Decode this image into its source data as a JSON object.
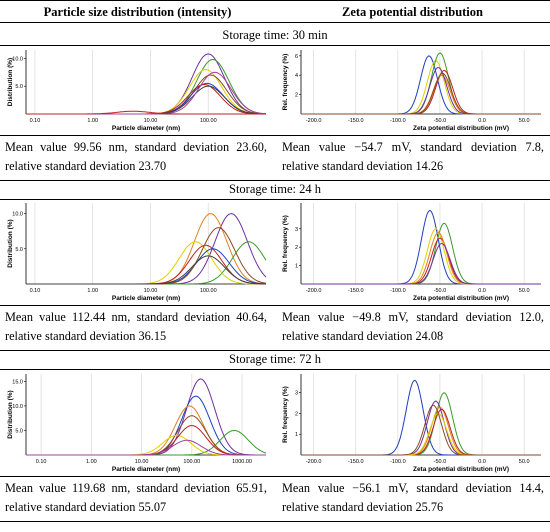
{
  "header": [
    "Particle size distribution (intensity)",
    "Zeta potential distribution"
  ],
  "sections": [
    {
      "title": "Storage time: 30 min",
      "size_chart": {
        "type": "line",
        "xlabel": "Particle diameter (nm)",
        "ylabel": "Distribution (%)",
        "log_x": true,
        "xlim": [
          0.07,
          1000
        ],
        "xticks": [
          {
            "value": 0.1,
            "label": "0.10"
          },
          {
            "value": 1,
            "label": "1.00"
          },
          {
            "value": 10,
            "label": "10.00"
          },
          {
            "value": 100,
            "label": "100.00"
          }
        ],
        "ylim": [
          0,
          11.5
        ],
        "yticks": [
          {
            "value": 5,
            "label": "5.0"
          },
          {
            "value": 10,
            "label": "10.0"
          }
        ],
        "series": [
          {
            "color": "#7030a0",
            "peak": 100,
            "height": 10.8
          },
          {
            "color": "#3a9a2a",
            "peak": 120,
            "height": 9.8
          },
          {
            "color": "#e0d000",
            "peak": 90,
            "height": 8
          },
          {
            "color": "#8a4a20",
            "peak": 110,
            "height": 7
          },
          {
            "color": "#1f3fbf",
            "peak": 95,
            "height": 5.5
          },
          {
            "color": "#c02020",
            "peak": 85,
            "height": 5.3
          },
          {
            "color": "#404040",
            "peak": 100,
            "height": 5
          },
          {
            "color": "#a040a0",
            "peak": 130,
            "height": 7.5
          },
          {
            "color": "#c02020",
            "peak": 5,
            "height": 0.5
          }
        ]
      },
      "zeta_chart": {
        "type": "line",
        "xlabel": "Zeta potential distribution (mV)",
        "ylabel": "Rel. frequency (%)",
        "log_x": false,
        "xlim": [
          -215,
          70
        ],
        "xticks": [
          {
            "value": -200,
            "label": "-200.0"
          },
          {
            "value": -150,
            "label": "-150.0"
          },
          {
            "value": -100,
            "label": "-100.0"
          },
          {
            "value": -50,
            "label": "-50.0"
          },
          {
            "value": 0,
            "label": "0.0"
          },
          {
            "value": 50,
            "label": "50.0"
          }
        ],
        "ylim": [
          0,
          6.6
        ],
        "yticks": [
          2,
          4,
          6
        ],
        "series": [
          {
            "color": "#1f3fbf",
            "peak": -63,
            "height": 6
          },
          {
            "color": "#e0d000",
            "peak": -55,
            "height": 5.5
          },
          {
            "color": "#3a9a2a",
            "peak": -50,
            "height": 6.3
          },
          {
            "color": "#c02020",
            "peak": -45,
            "height": 4.5
          },
          {
            "color": "#e08020",
            "peak": -48,
            "height": 4
          },
          {
            "color": "#7030a0",
            "peak": -52,
            "height": 4.8
          },
          {
            "color": "#8a4a20",
            "peak": -47,
            "height": 4.2
          }
        ]
      },
      "size_text": "Mean value 99.56 nm, standard deviation 23.60, relative standard deviation 23.70",
      "zeta_text": "Mean value −54.7 mV, standard deviation 7.8, relative standard deviation 14.26"
    },
    {
      "title": "Storage time: 24 h",
      "size_chart": {
        "type": "line",
        "xlabel": "Particle diameter (nm)",
        "ylabel": "Distribution (%)",
        "log_x": true,
        "xlim": [
          0.07,
          1000
        ],
        "xticks": [
          {
            "value": 0.1,
            "label": "0.10"
          },
          {
            "value": 1,
            "label": "1.00"
          },
          {
            "value": 10,
            "label": "10.00"
          },
          {
            "value": 100,
            "label": "100.00"
          }
        ],
        "ylim": [
          0,
          11.5
        ],
        "yticks": [
          {
            "value": 5,
            "label": "5.0"
          },
          {
            "value": 10,
            "label": "10.0"
          }
        ],
        "series": [
          {
            "color": "#7030a0",
            "peak": 250,
            "height": 10
          },
          {
            "color": "#e08020",
            "peak": 110,
            "height": 10
          },
          {
            "color": "#3a9a2a",
            "peak": 500,
            "height": 6
          },
          {
            "color": "#e0d000",
            "peak": 60,
            "height": 6
          },
          {
            "color": "#c02020",
            "peak": 90,
            "height": 5.5
          },
          {
            "color": "#1f3fbf",
            "peak": 120,
            "height": 5
          },
          {
            "color": "#8a4a20",
            "peak": 150,
            "height": 8
          },
          {
            "color": "#404040",
            "peak": 100,
            "height": 4
          }
        ]
      },
      "zeta_chart": {
        "type": "line",
        "xlabel": "Zeta potential distribution (mV)",
        "ylabel": "Rel. frequency (%)",
        "log_x": false,
        "xlim": [
          -215,
          70
        ],
        "xticks": [
          {
            "value": -200,
            "label": "-200.0"
          },
          {
            "value": -150,
            "label": "-150.0"
          },
          {
            "value": -100,
            "label": "-100.0"
          },
          {
            "value": -50,
            "label": "-50.0"
          },
          {
            "value": 0,
            "label": "0.0"
          },
          {
            "value": 50,
            "label": "50.0"
          }
        ],
        "ylim": [
          0,
          4.4
        ],
        "yticks": [
          1,
          2,
          3
        ],
        "series": [
          {
            "color": "#1f3fbf",
            "peak": -62,
            "height": 4
          },
          {
            "color": "#3a9a2a",
            "peak": -45,
            "height": 3.3
          },
          {
            "color": "#e0d000",
            "peak": -55,
            "height": 3
          },
          {
            "color": "#c02020",
            "peak": -50,
            "height": 2.5
          },
          {
            "color": "#e08020",
            "peak": -52,
            "height": 2.8
          },
          {
            "color": "#7030a0",
            "peak": -48,
            "height": 2.2
          }
        ]
      },
      "size_text": "Mean value 112.44 nm, standard deviation 40.64, relative standard deviation 36.15",
      "zeta_text": "Mean value −49.8 mV, standard deviation 12.0, relative standard deviation 24.08"
    },
    {
      "title": "Storage time: 72 h",
      "size_chart": {
        "type": "line",
        "xlabel": "Particle diameter (nm)",
        "ylabel": "Distribution (%)",
        "log_x": true,
        "xlim": [
          0.05,
          3000
        ],
        "xticks": [
          {
            "value": 0.1,
            "label": "0.10"
          },
          {
            "value": 1,
            "label": "1.00"
          },
          {
            "value": 10,
            "label": "10.00"
          },
          {
            "value": 100,
            "label": "100.00"
          },
          {
            "value": 1000,
            "label": "1000.00"
          }
        ],
        "ylim": [
          0,
          16.5
        ],
        "yticks": [
          {
            "value": 5,
            "label": "5.0"
          },
          {
            "value": 10,
            "label": "10.0"
          },
          {
            "value": 15,
            "label": "15.0"
          }
        ],
        "series": [
          {
            "color": "#7030a0",
            "peak": 150,
            "height": 15.5
          },
          {
            "color": "#1f3fbf",
            "peak": 120,
            "height": 12
          },
          {
            "color": "#e08020",
            "peak": 90,
            "height": 10
          },
          {
            "color": "#8a4a20",
            "peak": 100,
            "height": 8
          },
          {
            "color": "#3a9a2a",
            "peak": 700,
            "height": 5
          },
          {
            "color": "#e0d000",
            "peak": 50,
            "height": 4
          },
          {
            "color": "#c02020",
            "peak": 100,
            "height": 6
          },
          {
            "color": "#a040a0",
            "peak": 80,
            "height": 3
          }
        ]
      },
      "zeta_chart": {
        "type": "line",
        "xlabel": "Zeta potential distribution (mV)",
        "ylabel": "Rel. frequency (%)",
        "log_x": false,
        "xlim": [
          -215,
          70
        ],
        "xticks": [
          {
            "value": -200,
            "label": "-200.0"
          },
          {
            "value": -150,
            "label": "-150.0"
          },
          {
            "value": -100,
            "label": "-100.0"
          },
          {
            "value": -50,
            "label": "-50.0"
          },
          {
            "value": 0,
            "label": "0.0"
          },
          {
            "value": 50,
            "label": "50.0"
          }
        ],
        "ylim": [
          0,
          3.9
        ],
        "yticks": [
          1,
          2,
          3
        ],
        "series": [
          {
            "color": "#1f3fbf",
            "peak": -80,
            "height": 3.6
          },
          {
            "color": "#3a9a2a",
            "peak": -45,
            "height": 3
          },
          {
            "color": "#7030a0",
            "peak": -55,
            "height": 2.6
          },
          {
            "color": "#e08020",
            "peak": -50,
            "height": 2.3
          },
          {
            "color": "#c02020",
            "peak": -48,
            "height": 2.2
          },
          {
            "color": "#e0d000",
            "peak": -52,
            "height": 2
          },
          {
            "color": "#8a4a20",
            "peak": -58,
            "height": 2.4
          }
        ]
      },
      "size_text": "Mean value 119.68 nm, standard deviation 65.91, relative standard deviation 55.07",
      "zeta_text": "Mean value −56.1 mV, standard deviation 14.4, relative standard deviation 25.76"
    }
  ]
}
